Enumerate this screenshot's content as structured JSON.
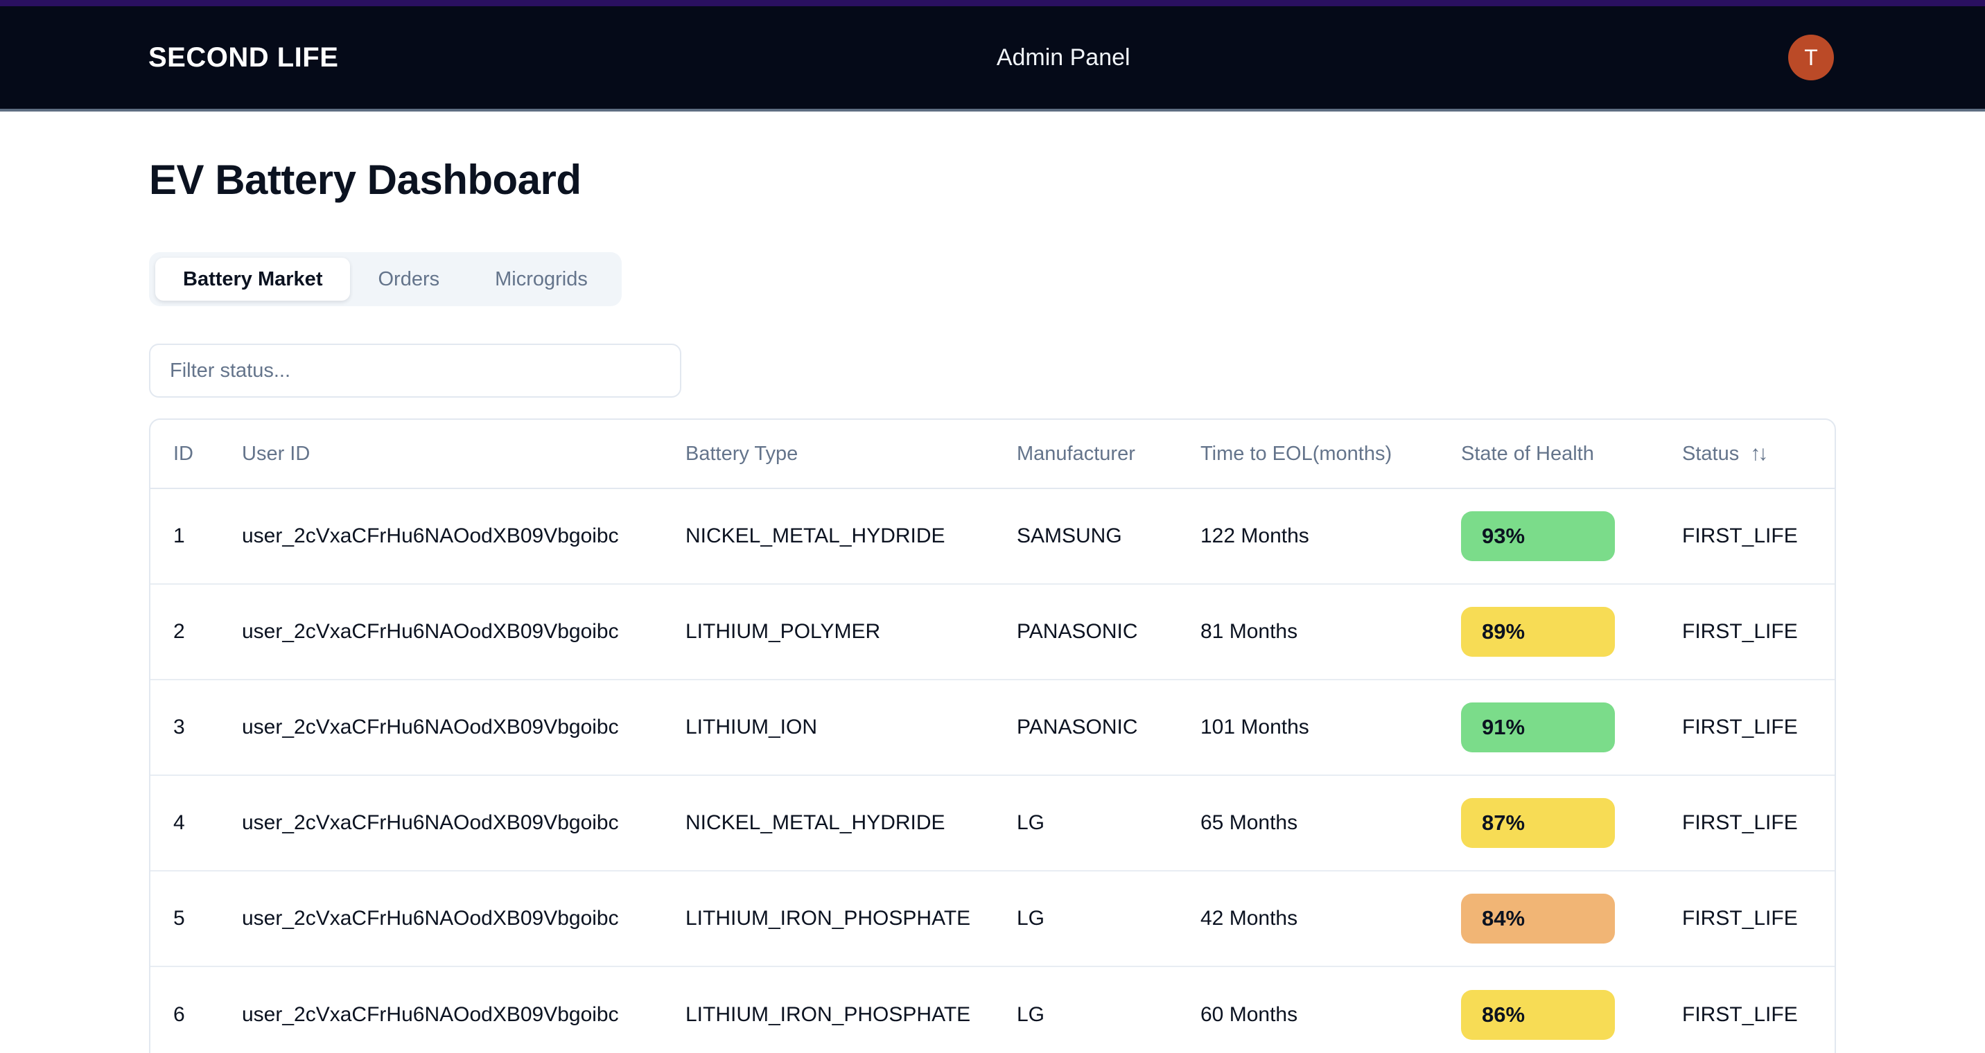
{
  "navbar": {
    "brand": "SECOND LIFE",
    "title": "Admin Panel",
    "avatar_initial": "T"
  },
  "page": {
    "heading": "EV Battery Dashboard"
  },
  "tabs": [
    {
      "label": "Battery Market",
      "active": true
    },
    {
      "label": "Orders",
      "active": false
    },
    {
      "label": "Microgrids",
      "active": false
    }
  ],
  "filter": {
    "placeholder": "Filter status...",
    "value": ""
  },
  "table": {
    "columns": [
      {
        "label": "ID",
        "sortable": false
      },
      {
        "label": "User ID",
        "sortable": false
      },
      {
        "label": "Battery Type",
        "sortable": false
      },
      {
        "label": "Manufacturer",
        "sortable": false
      },
      {
        "label": "Time to EOL(months)",
        "sortable": false
      },
      {
        "label": "State of Health",
        "sortable": false
      },
      {
        "label": "Status",
        "sortable": true
      }
    ],
    "sort_icon": "↑↓",
    "rows": [
      {
        "id": "1",
        "user_id": "user_2cVxaCFrHu6NAOodXB09Vbgoibc",
        "battery_type": "NICKEL_METAL_HYDRIDE",
        "manufacturer": "SAMSUNG",
        "eol": "122 Months",
        "soh": "93%",
        "soh_level": "green",
        "status": "FIRST_LIFE"
      },
      {
        "id": "2",
        "user_id": "user_2cVxaCFrHu6NAOodXB09Vbgoibc",
        "battery_type": "LITHIUM_POLYMER",
        "manufacturer": "PANASONIC",
        "eol": "81 Months",
        "soh": "89%",
        "soh_level": "yellow",
        "status": "FIRST_LIFE"
      },
      {
        "id": "3",
        "user_id": "user_2cVxaCFrHu6NAOodXB09Vbgoibc",
        "battery_type": "LITHIUM_ION",
        "manufacturer": "PANASONIC",
        "eol": "101 Months",
        "soh": "91%",
        "soh_level": "green",
        "status": "FIRST_LIFE"
      },
      {
        "id": "4",
        "user_id": "user_2cVxaCFrHu6NAOodXB09Vbgoibc",
        "battery_type": "NICKEL_METAL_HYDRIDE",
        "manufacturer": "LG",
        "eol": "65 Months",
        "soh": "87%",
        "soh_level": "yellow",
        "status": "FIRST_LIFE"
      },
      {
        "id": "5",
        "user_id": "user_2cVxaCFrHu6NAOodXB09Vbgoibc",
        "battery_type": "LITHIUM_IRON_PHOSPHATE",
        "manufacturer": "LG",
        "eol": "42 Months",
        "soh": "84%",
        "soh_level": "orange",
        "status": "FIRST_LIFE"
      },
      {
        "id": "6",
        "user_id": "user_2cVxaCFrHu6NAOodXB09Vbgoibc",
        "battery_type": "LITHIUM_IRON_PHOSPHATE",
        "manufacturer": "LG",
        "eol": "60 Months",
        "soh": "86%",
        "soh_level": "yellow",
        "status": "FIRST_LIFE"
      }
    ]
  },
  "colors": {
    "soh_green": "#7bdc8a",
    "soh_yellow": "#f7dc55",
    "soh_orange": "#f1b575",
    "avatar_bg": "#bb4a27",
    "nav_bg": "#050a18",
    "nav_top_strip": "#2a1060"
  }
}
